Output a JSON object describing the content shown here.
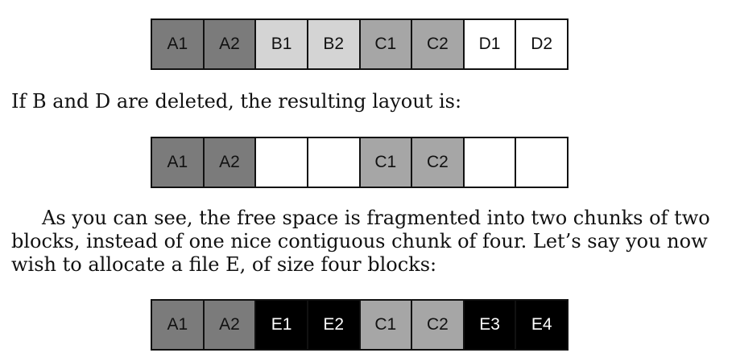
{
  "row1": [
    {
      "label": "A1",
      "kind": "A"
    },
    {
      "label": "A2",
      "kind": "A"
    },
    {
      "label": "B1",
      "kind": "B"
    },
    {
      "label": "B2",
      "kind": "B"
    },
    {
      "label": "C1",
      "kind": "C"
    },
    {
      "label": "C2",
      "kind": "C"
    },
    {
      "label": "D1",
      "kind": "D"
    },
    {
      "label": "D2",
      "kind": "D"
    }
  ],
  "text1": "If B and D are deleted, the resulting layout is:",
  "row2": [
    {
      "label": "A1",
      "kind": "A"
    },
    {
      "label": "A2",
      "kind": "A"
    },
    {
      "label": "",
      "kind": "free"
    },
    {
      "label": "",
      "kind": "free"
    },
    {
      "label": "C1",
      "kind": "C"
    },
    {
      "label": "C2",
      "kind": "C"
    },
    {
      "label": "",
      "kind": "free"
    },
    {
      "label": "",
      "kind": "free"
    }
  ],
  "paragraph": {
    "line1": "As you can see, the free space is fragmented into two chunks of two",
    "line2": "blocks, instead of one nice contiguous chunk of four.  Let’s say you now",
    "line3": "wish to allocate a file E, of size four blocks:"
  },
  "row3": [
    {
      "label": "A1",
      "kind": "A"
    },
    {
      "label": "A2",
      "kind": "A"
    },
    {
      "label": "E1",
      "kind": "E"
    },
    {
      "label": "E2",
      "kind": "E"
    },
    {
      "label": "C1",
      "kind": "C"
    },
    {
      "label": "C2",
      "kind": "C"
    },
    {
      "label": "E3",
      "kind": "E"
    },
    {
      "label": "E4",
      "kind": "E"
    }
  ]
}
